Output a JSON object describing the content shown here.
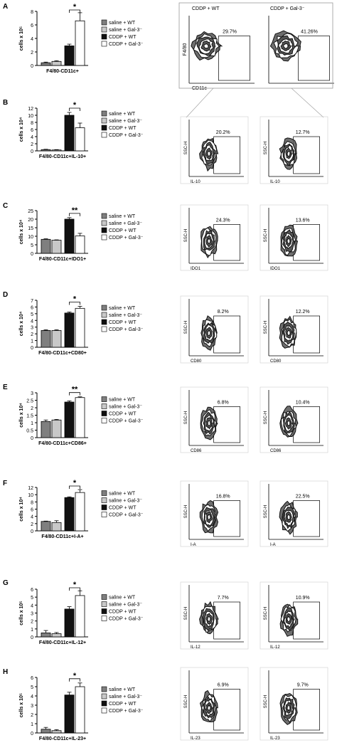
{
  "legend_labels": [
    "saline + WT",
    "saline + Gal-3⁻",
    "CDDP + WT",
    "CDDP + Gal-3⁻"
  ],
  "colors": {
    "saline_wt": "#7f7f7f",
    "saline_gal3": "#c8c8c8",
    "cddp_wt": "#111111",
    "cddp_gal3": "#ffffff"
  },
  "flow_titles": {
    "left": "CDDP + WT",
    "right": "CDDP + Gal-3⁻"
  },
  "gate_axis": {
    "y": "F4/80",
    "x": "CD11c"
  },
  "ssc_label": "SSC-H",
  "chart_data": [
    {
      "type": "bar",
      "panel": "A",
      "ylabel": "cells x 10⁵",
      "xlabel": "F4/80-CD11c+",
      "ylim": [
        0,
        8
      ],
      "yticks": [
        0,
        2,
        4,
        6,
        8
      ],
      "values": [
        0.4,
        0.6,
        2.9,
        6.6
      ],
      "errors": [
        0.1,
        0.1,
        0.25,
        1.2
      ],
      "significance": "*",
      "flow": {
        "left_pct": "29.7%",
        "right_pct": "41.26%"
      }
    },
    {
      "type": "bar",
      "panel": "B",
      "ylabel": "cells x 10⁴",
      "xlabel": "F4/80-CD11c+IL-10+",
      "ylim": [
        0,
        12
      ],
      "yticks": [
        0,
        2,
        4,
        6,
        8,
        10,
        12
      ],
      "values": [
        0.35,
        0.25,
        10.0,
        6.5
      ],
      "errors": [
        0.1,
        0.1,
        0.8,
        1.3
      ],
      "significance": "*",
      "flow": {
        "left_pct": "20.2%",
        "right_pct": "12.7%",
        "xaxis": "IL-10"
      }
    },
    {
      "type": "bar",
      "panel": "C",
      "ylabel": "cells x 10⁴",
      "xlabel": "F4/80-CD11c+IDO1+",
      "ylim": [
        0,
        25
      ],
      "yticks": [
        0,
        5,
        10,
        15,
        20,
        25
      ],
      "values": [
        8.2,
        7.7,
        20.0,
        10.2
      ],
      "errors": [
        0.3,
        0.2,
        0.9,
        1.5
      ],
      "significance": "**",
      "flow": {
        "left_pct": "24.3%",
        "right_pct": "13.6%",
        "xaxis": "IDO1"
      }
    },
    {
      "type": "bar",
      "panel": "D",
      "ylabel": "cells x 10⁴",
      "xlabel": "F4/80-CD11c+CD80+",
      "ylim": [
        0,
        7
      ],
      "yticks": [
        0,
        1,
        2,
        3,
        4,
        5,
        6,
        7
      ],
      "values": [
        2.5,
        2.5,
        5.1,
        5.8
      ],
      "errors": [
        0.1,
        0.1,
        0.15,
        0.3
      ],
      "significance": "*",
      "flow": {
        "left_pct": "8.2%",
        "right_pct": "12.2%",
        "xaxis": "CD80"
      }
    },
    {
      "type": "bar",
      "panel": "E",
      "ylabel": "cells x 10⁴",
      "xlabel": "F4/80-CD11c+CD86+",
      "ylim": [
        0,
        3
      ],
      "yticks": [
        0,
        0.5,
        1,
        1.5,
        2,
        2.5,
        3
      ],
      "values": [
        1.08,
        1.18,
        2.38,
        2.68
      ],
      "errors": [
        0.1,
        0.04,
        0.08,
        0.05
      ],
      "significance": "**",
      "flow": {
        "left_pct": "6.8%",
        "right_pct": "10.4%",
        "xaxis": "CD86"
      }
    },
    {
      "type": "bar",
      "panel": "F",
      "ylabel": "cells x 10⁴",
      "xlabel": "F4/80-CD11c+I-A+",
      "ylim": [
        0,
        12
      ],
      "yticks": [
        0,
        2,
        4,
        6,
        8,
        10,
        12
      ],
      "values": [
        2.6,
        2.3,
        9.2,
        10.6
      ],
      "errors": [
        0.1,
        0.5,
        0.2,
        0.8
      ],
      "significance": "*",
      "flow": {
        "left_pct": "16.8%",
        "right_pct": "22.5%",
        "xaxis": "I-A"
      }
    },
    {
      "type": "bar",
      "panel": "G",
      "ylabel": "cells x 10⁵",
      "xlabel": "F4/80-CD11c+IL-12+",
      "ylim": [
        0,
        6
      ],
      "yticks": [
        0,
        1,
        2,
        3,
        4,
        5,
        6
      ],
      "values": [
        0.5,
        0.4,
        3.5,
        5.2
      ],
      "errors": [
        0.3,
        0.15,
        0.3,
        0.6
      ],
      "significance": "*",
      "flow": {
        "left_pct": "7.7%",
        "right_pct": "10.9%",
        "xaxis": "IL-12"
      }
    },
    {
      "type": "bar",
      "panel": "H",
      "ylabel": "cells x 10⁵",
      "xlabel": "F4/80-CD11c+IL-23+",
      "ylim": [
        0,
        6
      ],
      "yticks": [
        0,
        1,
        2,
        3,
        4,
        5,
        6
      ],
      "values": [
        0.4,
        0.25,
        4.1,
        5.0
      ],
      "errors": [
        0.2,
        0.1,
        0.3,
        0.4
      ],
      "significance": "*",
      "flow": {
        "left_pct": "6.9%",
        "right_pct": "9.7%",
        "xaxis": "IL-23"
      }
    }
  ]
}
